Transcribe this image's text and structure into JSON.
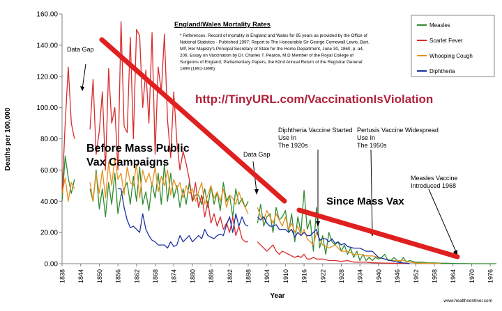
{
  "chart_data": {
    "type": "line",
    "title": "England/Wales Mortality Rates",
    "xlabel": "Year",
    "ylabel": "Deaths per 100,000",
    "xlim": [
      1838,
      1978
    ],
    "ylim": [
      0,
      160
    ],
    "x_ticks": [
      "1838",
      "1844",
      "1850",
      "1856",
      "1862",
      "1868",
      "1874",
      "1880",
      "1886",
      "1892",
      "1898",
      "1904",
      "1910",
      "1916",
      "1922",
      "1928",
      "1934",
      "1940",
      "1946",
      "1952",
      "1958",
      "1964",
      "1970",
      "1976"
    ],
    "y_ticks": [
      "0.00",
      "20.00",
      "40.00",
      "60.00",
      "80.00",
      "100.00",
      "120.00",
      "140.00",
      "160.00"
    ],
    "grid": false,
    "legend_position": "top-right",
    "references": [
      "* References: Record of mortality in England and Wales for 95 years as provided by the Office of",
      "National Statistics - Published 1997; Report to The Honourable Sir George Cornewall Lewis, Bart.",
      "MP, Her Majesty's Principal Secretary of State for the Home Department, June 30, 1860, p. a4,",
      "206; Essay on Vaccination by Dr. Charles T. Pearce, M.D Member of the Royal College of",
      "Surgeons of England; Parliamentary Papers, the 62nd Annual Return of the Registrar General",
      "1899 (1891-1896)"
    ],
    "series": [
      {
        "name": "Measles",
        "color": "#2e8b2e",
        "x": [
          1838,
          1839,
          1840,
          1841,
          1842,
          1847,
          1848,
          1849,
          1850,
          1851,
          1852,
          1853,
          1854,
          1855,
          1856,
          1857,
          1858,
          1859,
          1860,
          1861,
          1862,
          1863,
          1864,
          1865,
          1866,
          1867,
          1868,
          1869,
          1870,
          1871,
          1872,
          1873,
          1874,
          1875,
          1876,
          1877,
          1878,
          1879,
          1880,
          1881,
          1882,
          1883,
          1884,
          1885,
          1886,
          1887,
          1888,
          1889,
          1890,
          1891,
          1892,
          1893,
          1894,
          1895,
          1896,
          1897,
          1898,
          1901,
          1902,
          1903,
          1904,
          1905,
          1906,
          1907,
          1908,
          1909,
          1910,
          1911,
          1912,
          1913,
          1914,
          1915,
          1916,
          1917,
          1918,
          1919,
          1920,
          1921,
          1922,
          1923,
          1924,
          1925,
          1926,
          1927,
          1928,
          1929,
          1930,
          1931,
          1932,
          1933,
          1934,
          1935,
          1936,
          1937,
          1938,
          1939,
          1940,
          1941,
          1942,
          1943,
          1944,
          1945,
          1946,
          1947,
          1948,
          1949,
          1950,
          1952,
          1954,
          1956,
          1958,
          1960,
          1962,
          1964,
          1966,
          1968,
          1970,
          1972,
          1974,
          1976,
          1978
        ],
        "y": [
          40,
          69,
          55,
          45,
          54,
          48,
          40,
          60,
          35,
          48,
          30,
          52,
          38,
          58,
          32,
          44,
          48,
          52,
          38,
          56,
          40,
          62,
          38,
          46,
          34,
          52,
          42,
          58,
          38,
          64,
          40,
          58,
          42,
          50,
          36,
          48,
          38,
          52,
          40,
          44,
          44,
          38,
          48,
          36,
          50,
          38,
          46,
          34,
          52,
          40,
          44,
          30,
          48,
          38,
          42,
          36,
          40,
          26,
          38,
          24,
          30,
          32,
          20,
          36,
          28,
          30,
          34,
          20,
          32,
          14,
          30,
          20,
          47,
          22,
          28,
          8,
          36,
          10,
          18,
          6,
          20,
          14,
          12,
          14,
          8,
          12,
          6,
          10,
          4,
          8,
          2,
          6,
          2,
          4,
          2,
          4,
          3,
          4,
          6,
          2,
          2,
          4,
          2,
          1,
          4,
          1,
          2,
          1,
          1,
          0.5,
          0.5,
          0.3,
          0.3,
          0.2,
          0.1,
          0.1,
          0,
          0,
          0,
          0,
          0
        ]
      },
      {
        "name": "Scarlet Fever",
        "color": "#d92b2b",
        "x": [
          1838,
          1839,
          1840,
          1841,
          1842,
          1847,
          1848,
          1849,
          1850,
          1851,
          1852,
          1853,
          1854,
          1855,
          1856,
          1857,
          1858,
          1859,
          1860,
          1861,
          1862,
          1863,
          1864,
          1865,
          1866,
          1867,
          1868,
          1869,
          1870,
          1871,
          1872,
          1873,
          1874,
          1875,
          1876,
          1877,
          1878,
          1879,
          1880,
          1881,
          1882,
          1883,
          1884,
          1885,
          1886,
          1887,
          1888,
          1889,
          1890,
          1891,
          1892,
          1893,
          1894,
          1895,
          1896,
          1897,
          1898,
          1901,
          1902,
          1903,
          1904,
          1905,
          1906,
          1907,
          1908,
          1909,
          1910,
          1911,
          1912,
          1913,
          1914,
          1915,
          1916,
          1917,
          1918,
          1919,
          1920,
          1922,
          1924,
          1926,
          1928,
          1930,
          1932,
          1934,
          1936,
          1938,
          1940,
          1942,
          1944,
          1946,
          1948,
          1950,
          1955,
          1960,
          1965,
          1970,
          1978
        ],
        "y": [
          45,
          90,
          126,
          90,
          80,
          86,
          118,
          70,
          85,
          110,
          60,
          125,
          90,
          100,
          60,
          155,
          88,
          84,
          145,
          80,
          150,
          146,
          100,
          124,
          90,
          148,
          70,
          126,
          110,
          147,
          92,
          68,
          110,
          78,
          60,
          72,
          64,
          54,
          40,
          52,
          36,
          44,
          30,
          40,
          26,
          32,
          24,
          30,
          22,
          26,
          20,
          30,
          18,
          24,
          16,
          14,
          14,
          14,
          12,
          10,
          8,
          10,
          12,
          8,
          6,
          8,
          7,
          6,
          5,
          4,
          5,
          4,
          6,
          3,
          3,
          4,
          3,
          3,
          2,
          2,
          1.5,
          2,
          1,
          1,
          1,
          0.6,
          0.5,
          0.4,
          0.3,
          0.2,
          0.2,
          0.1,
          0,
          0,
          0,
          0,
          0
        ]
      },
      {
        "name": "Whooping Cough",
        "color": "#e8901e",
        "x": [
          1838,
          1839,
          1840,
          1841,
          1842,
          1847,
          1848,
          1849,
          1850,
          1851,
          1852,
          1853,
          1854,
          1855,
          1856,
          1857,
          1858,
          1859,
          1860,
          1861,
          1862,
          1863,
          1864,
          1865,
          1866,
          1867,
          1868,
          1869,
          1870,
          1871,
          1872,
          1873,
          1874,
          1875,
          1876,
          1877,
          1878,
          1879,
          1880,
          1881,
          1882,
          1883,
          1884,
          1885,
          1886,
          1887,
          1888,
          1889,
          1890,
          1891,
          1892,
          1893,
          1894,
          1895,
          1896,
          1897,
          1898,
          1901,
          1902,
          1903,
          1904,
          1905,
          1906,
          1907,
          1908,
          1909,
          1910,
          1911,
          1912,
          1913,
          1914,
          1915,
          1916,
          1917,
          1918,
          1919,
          1920,
          1922,
          1924,
          1926,
          1928,
          1930,
          1932,
          1934,
          1936,
          1938,
          1940,
          1942,
          1944,
          1946,
          1948,
          1950,
          1952,
          1954,
          1956,
          1958,
          1960,
          1964,
          1970,
          1978
        ],
        "y": [
          45,
          55,
          40,
          52,
          48,
          52,
          40,
          58,
          45,
          60,
          42,
          65,
          50,
          68,
          54,
          58,
          44,
          62,
          52,
          50,
          64,
          42,
          60,
          52,
          58,
          50,
          62,
          46,
          56,
          50,
          60,
          44,
          54,
          48,
          52,
          42,
          50,
          45,
          48,
          40,
          46,
          52,
          38,
          44,
          50,
          42,
          46,
          40,
          48,
          36,
          44,
          42,
          38,
          46,
          40,
          36,
          32,
          36,
          30,
          28,
          34,
          30,
          26,
          32,
          28,
          24,
          30,
          22,
          26,
          20,
          24,
          18,
          22,
          16,
          14,
          12,
          20,
          12,
          10,
          12,
          8,
          8,
          6,
          6,
          5,
          5,
          4,
          3,
          2,
          2,
          2,
          1,
          0.5,
          0.3,
          0.2,
          0.1,
          0.1,
          0.1,
          0,
          0
        ]
      },
      {
        "name": "Diphtheria",
        "color": "#1b2f9e",
        "x": [
          1856,
          1857,
          1858,
          1859,
          1860,
          1861,
          1862,
          1863,
          1864,
          1865,
          1866,
          1867,
          1868,
          1869,
          1870,
          1871,
          1872,
          1873,
          1874,
          1875,
          1876,
          1877,
          1878,
          1879,
          1880,
          1881,
          1882,
          1883,
          1884,
          1885,
          1886,
          1887,
          1888,
          1889,
          1890,
          1891,
          1892,
          1893,
          1894,
          1895,
          1896,
          1897,
          1898,
          1901,
          1902,
          1903,
          1904,
          1905,
          1906,
          1907,
          1908,
          1909,
          1910,
          1911,
          1912,
          1913,
          1914,
          1915,
          1916,
          1917,
          1918,
          1919,
          1920,
          1921,
          1922,
          1923,
          1924,
          1925,
          1926,
          1927,
          1928,
          1929,
          1930,
          1932,
          1934,
          1936,
          1938,
          1940,
          1942,
          1944,
          1946,
          1948,
          1950,
          1955,
          1960,
          1970,
          1978
        ],
        "y": [
          48,
          48,
          36,
          28,
          23,
          24,
          22,
          20,
          32,
          22,
          18,
          15,
          14,
          12,
          12,
          12,
          10,
          14,
          11,
          12,
          18,
          14,
          16,
          18,
          14,
          16,
          18,
          16,
          22,
          18,
          17,
          16,
          18,
          19,
          18,
          25,
          30,
          20,
          32,
          24,
          30,
          25,
          24,
          30,
          28,
          30,
          26,
          24,
          24,
          25,
          22,
          22,
          22,
          20,
          22,
          17,
          20,
          18,
          20,
          18,
          18,
          20,
          22,
          15,
          16,
          16,
          14,
          16,
          13,
          14,
          12,
          13,
          11,
          10,
          10,
          8,
          8,
          4,
          3,
          2,
          1,
          0.5,
          0.2,
          0.1,
          0,
          0,
          0
        ]
      }
    ],
    "annotations": [
      {
        "text": "Data Gap"
      },
      {
        "text": "Data Gap"
      },
      {
        "text": "Diphtheria Vaccine Started Use In The 1920s"
      },
      {
        "text": "Pertusis Vaccine Widespread Use In The 1950s"
      },
      {
        "text": "Measles Vaccine Introduced 1968"
      },
      {
        "text": "Before Mass Public Vax Campaigns"
      },
      {
        "text": "Since Mass Vax"
      },
      {
        "text": "http://TinyURL.com/VaccinationIsViolation"
      }
    ],
    "watermark": "www.healthsentinel.com"
  },
  "overlay_color": "#e02020",
  "url_color": "#b0203a"
}
